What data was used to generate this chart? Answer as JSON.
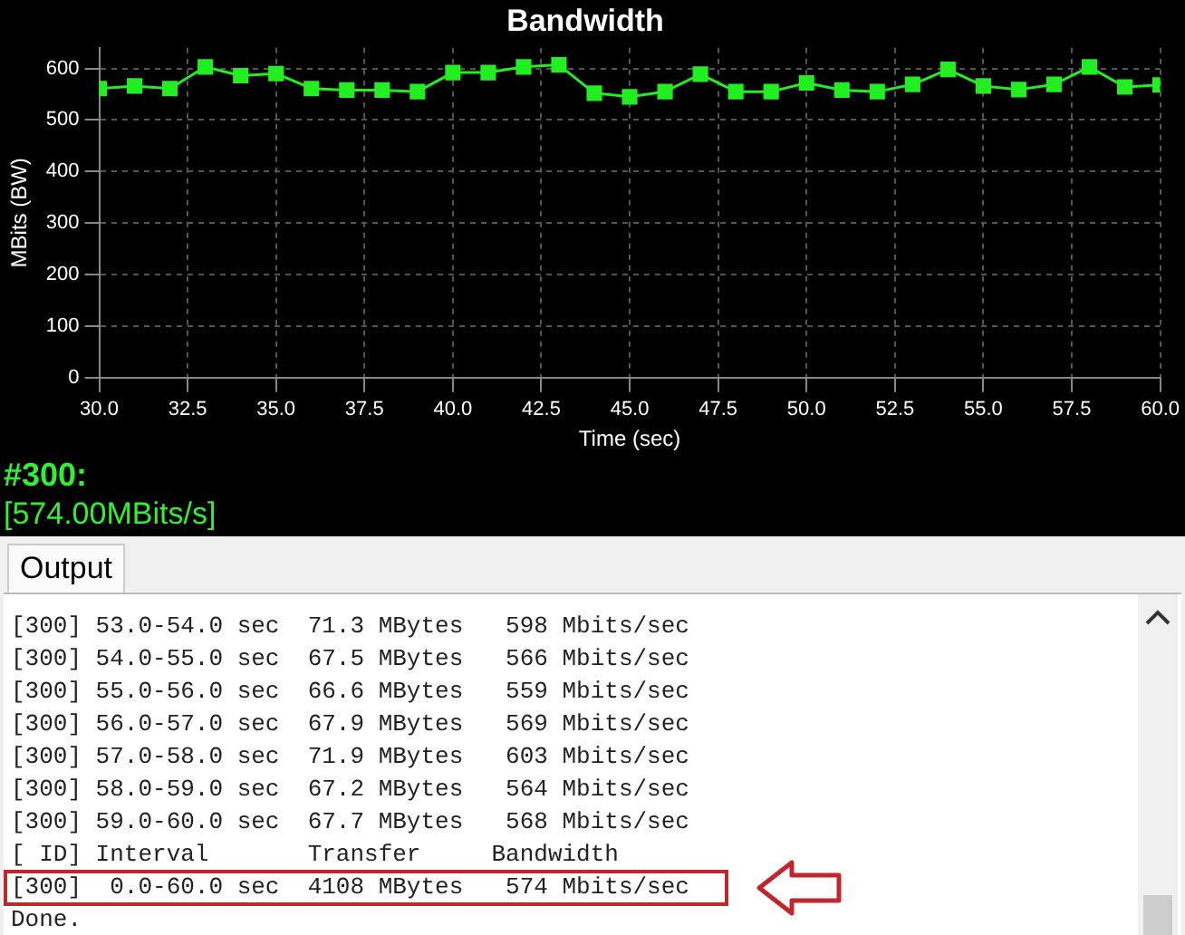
{
  "chart_data": {
    "type": "line",
    "title": "Bandwidth",
    "xlabel": "Time (sec)",
    "ylabel": "MBits (BW)",
    "x": [
      30,
      31,
      32,
      33,
      34,
      35,
      36,
      37,
      38,
      39,
      40,
      41,
      42,
      43,
      44,
      45,
      46,
      47,
      48,
      49,
      50,
      51,
      52,
      53,
      54,
      55,
      56,
      57,
      58,
      59,
      60
    ],
    "series": [
      {
        "color": "#22ee22",
        "values": [
          561,
          566,
          561,
          603,
          586,
          590,
          561,
          558,
          558,
          555,
          592,
          592,
          603,
          607,
          552,
          545,
          555,
          589,
          555,
          555,
          572,
          558,
          555,
          569,
          598,
          566,
          559,
          569,
          603,
          564,
          568
        ]
      }
    ],
    "xlim": [
      30,
      60
    ],
    "ylim": [
      0,
      640
    ],
    "xticks": [
      {
        "value": 30,
        "label": "30.0"
      },
      {
        "value": 32.5,
        "label": "32.5"
      },
      {
        "value": 35,
        "label": "35.0"
      },
      {
        "value": 37.5,
        "label": "37.5"
      },
      {
        "value": 40,
        "label": "40.0"
      },
      {
        "value": 42.5,
        "label": "42.5"
      },
      {
        "value": 45,
        "label": "45.0"
      },
      {
        "value": 47.5,
        "label": "47.5"
      },
      {
        "value": 50,
        "label": "50.0"
      },
      {
        "value": 52.5,
        "label": "52.5"
      },
      {
        "value": 55,
        "label": "55.0"
      },
      {
        "value": 57.5,
        "label": "57.5"
      },
      {
        "value": 60,
        "label": "60.0"
      }
    ],
    "yticks": [
      0,
      100,
      200,
      300,
      400,
      500,
      600
    ],
    "grid": true,
    "legend": false,
    "marker": "square",
    "line_style": "solid",
    "annotations": [
      "#300:",
      "[574.00MBits/s]",
      "Output",
      "[300] 53.0-54.0 sec  71.3 MBytes   598 Mbits/sec",
      "[300] 54.0-55.0 sec  67.5 MBytes   566 Mbits/sec",
      "[300] 55.0-56.0 sec  66.6 MBytes   559 Mbits/sec",
      "[300] 56.0-57.0 sec  67.9 MBytes   569 Mbits/sec",
      "[300] 57.0-58.0 sec  71.9 MBytes   603 Mbits/sec",
      "[300] 58.0-59.0 sec  67.2 MBytes   564 Mbits/sec",
      "[300] 59.0-60.0 sec  67.7 MBytes   568 Mbits/sec",
      "[ ID] Interval       Transfer     Bandwidth",
      "[300]  0.0-60.0 sec  4108 MBytes   574 Mbits/sec",
      "Done."
    ]
  }
}
